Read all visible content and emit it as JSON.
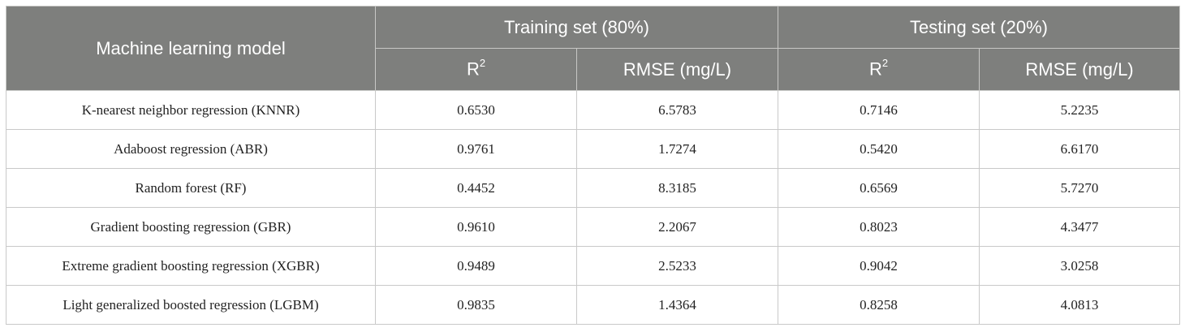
{
  "header": {
    "model_col": "Machine learning model",
    "training": "Training set (80%)",
    "testing": "Testing set (20%)",
    "r_label": "R",
    "r_sup": "2",
    "rmse_label": "RMSE (mg/L)"
  },
  "rows": [
    {
      "model": "K-nearest neighbor regression (KNNR)",
      "train_r2": "0.6530",
      "train_rmse": "6.5783",
      "test_r2": "0.7146",
      "test_rmse": "5.2235"
    },
    {
      "model": "Adaboost regression (ABR)",
      "train_r2": "0.9761",
      "train_rmse": "1.7274",
      "test_r2": "0.5420",
      "test_rmse": "6.6170"
    },
    {
      "model": "Random forest (RF)",
      "train_r2": "0.4452",
      "train_rmse": "8.3185",
      "test_r2": "0.6569",
      "test_rmse": "5.7270"
    },
    {
      "model": "Gradient boosting regression (GBR)",
      "train_r2": "0.9610",
      "train_rmse": "2.2067",
      "test_r2": "0.8023",
      "test_rmse": "4.3477"
    },
    {
      "model": "Extreme gradient boosting regression (XGBR)",
      "train_r2": "0.9489",
      "train_rmse": "2.5233",
      "test_r2": "0.9042",
      "test_rmse": "3.0258"
    },
    {
      "model": "Light generalized boosted regression (LGBM)",
      "train_r2": "0.9835",
      "train_rmse": "1.4364",
      "test_r2": "0.8258",
      "test_rmse": "4.0813"
    }
  ]
}
